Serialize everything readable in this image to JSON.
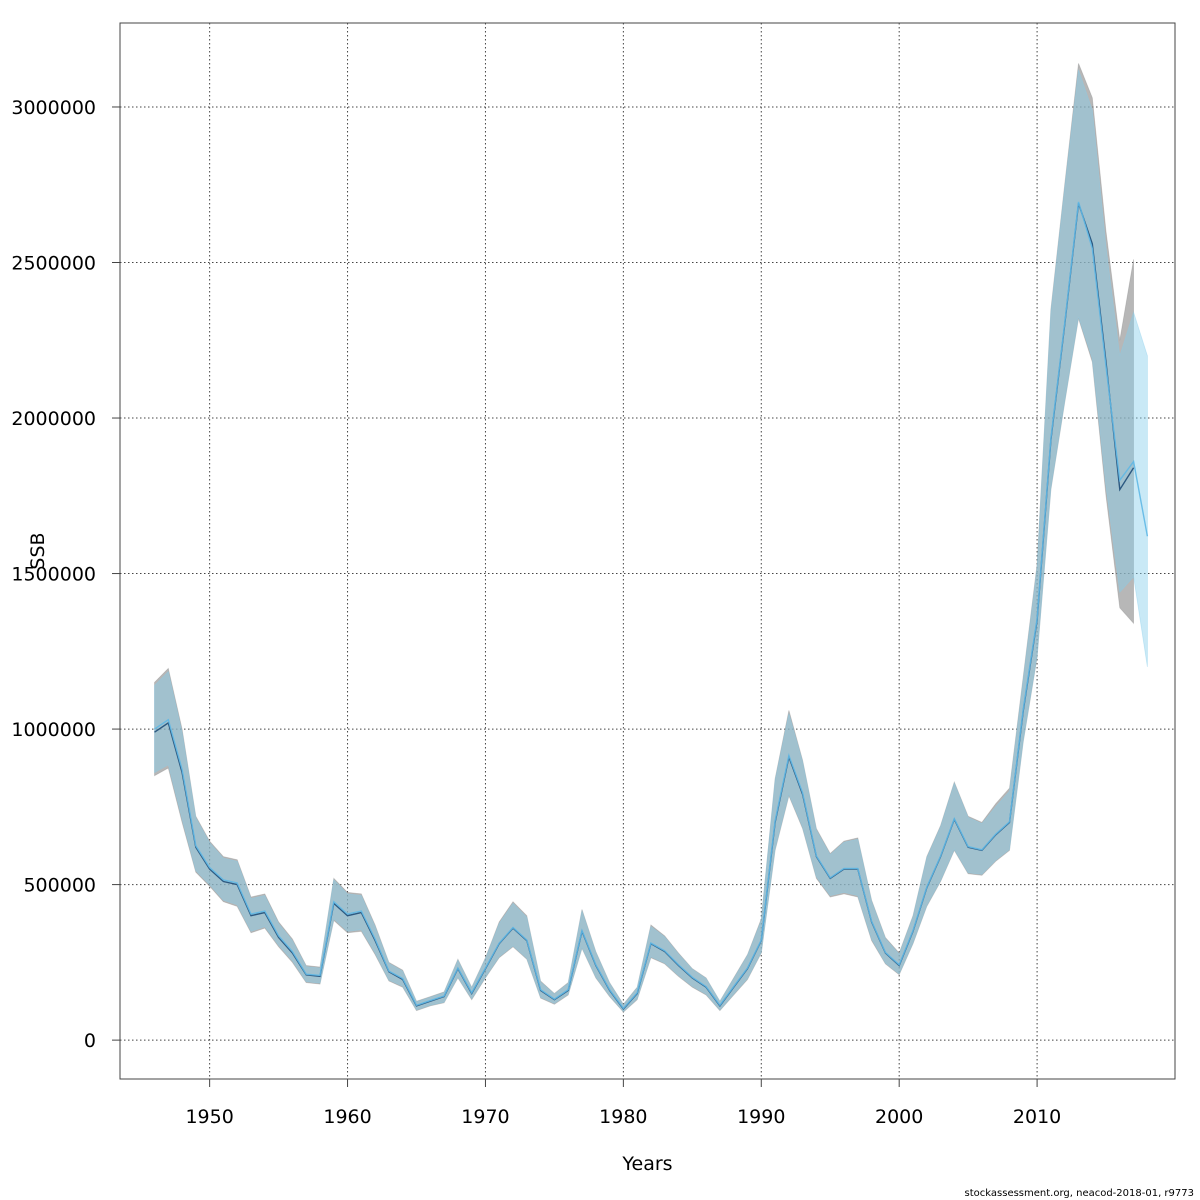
{
  "chart_data": {
    "type": "line",
    "xlabel": "Years",
    "ylabel": "SSB",
    "xlim": [
      1943.5,
      2020
    ],
    "ylim": [
      -125000,
      3270000
    ],
    "x_ticks": [
      1950,
      1960,
      1970,
      1980,
      1990,
      2000,
      2010
    ],
    "y_ticks": [
      0,
      500000,
      1000000,
      1500000,
      2000000,
      2500000,
      3000000
    ],
    "grid": true,
    "footer": "stockassessment.org, neacod-2018-01, r9773",
    "colors": {
      "band_a": "#8b8b8b",
      "band_b": "#87ceeb",
      "line_a": "#1f4e79",
      "line_b": "#5fb8e6",
      "grid": "#444444"
    },
    "series": [
      {
        "x": [
          1946,
          1947,
          1948,
          1949,
          1950,
          1951,
          1952,
          1953,
          1954,
          1955,
          1956,
          1957,
          1958,
          1959,
          1960,
          1961,
          1962,
          1963,
          1964,
          1965,
          1966,
          1967,
          1968,
          1969,
          1970,
          1971,
          1972,
          1973,
          1974,
          1975,
          1976,
          1977,
          1978,
          1979,
          1980,
          1981,
          1982,
          1983,
          1984,
          1985,
          1986,
          1987,
          1988,
          1989,
          1990,
          1991,
          1992,
          1993,
          1994,
          1995,
          1996,
          1997,
          1998,
          1999,
          2000,
          2001,
          2002,
          2003,
          2004,
          2005,
          2006,
          2007,
          2008,
          2009,
          2010,
          2011,
          2012,
          2013,
          2014,
          2015,
          2016,
          2017
        ],
        "values": [
          990000,
          1020000,
          860000,
          620000,
          550000,
          510000,
          500000,
          400000,
          410000,
          330000,
          280000,
          210000,
          205000,
          440000,
          400000,
          410000,
          320000,
          220000,
          195000,
          110000,
          125000,
          140000,
          230000,
          150000,
          230000,
          310000,
          360000,
          320000,
          160000,
          130000,
          160000,
          350000,
          240000,
          160000,
          100000,
          150000,
          310000,
          285000,
          240000,
          200000,
          170000,
          110000,
          170000,
          230000,
          320000,
          700000,
          910000,
          790000,
          590000,
          520000,
          550000,
          550000,
          380000,
          280000,
          240000,
          350000,
          490000,
          590000,
          710000,
          620000,
          610000,
          660000,
          700000,
          1060000,
          1350000,
          1930000,
          2300000,
          2690000,
          2560000,
          2180000,
          1770000,
          1840000
        ],
        "low": [
          850000,
          875000,
          700000,
          540000,
          495000,
          445000,
          430000,
          345000,
          360000,
          300000,
          250000,
          185000,
          180000,
          385000,
          345000,
          350000,
          275000,
          190000,
          170000,
          95000,
          110000,
          120000,
          200000,
          130000,
          200000,
          265000,
          300000,
          260000,
          135000,
          115000,
          145000,
          295000,
          200000,
          140000,
          90000,
          130000,
          265000,
          245000,
          205000,
          170000,
          145000,
          95000,
          145000,
          195000,
          280000,
          610000,
          785000,
          680000,
          520000,
          460000,
          470000,
          460000,
          320000,
          245000,
          210000,
          310000,
          430000,
          510000,
          610000,
          535000,
          530000,
          575000,
          610000,
          960000,
          1230000,
          1770000,
          2050000,
          2320000,
          2180000,
          1750000,
          1390000,
          1340000
        ],
        "high": [
          1150000,
          1195000,
          1000000,
          720000,
          640000,
          590000,
          580000,
          460000,
          470000,
          380000,
          325000,
          240000,
          235000,
          520000,
          475000,
          470000,
          370000,
          250000,
          225000,
          125000,
          140000,
          155000,
          260000,
          170000,
          265000,
          380000,
          445000,
          400000,
          190000,
          150000,
          185000,
          420000,
          285000,
          185000,
          115000,
          170000,
          370000,
          335000,
          280000,
          230000,
          200000,
          125000,
          200000,
          275000,
          390000,
          840000,
          1060000,
          900000,
          680000,
          600000,
          640000,
          650000,
          450000,
          330000,
          280000,
          400000,
          590000,
          690000,
          830000,
          720000,
          700000,
          760000,
          810000,
          1170000,
          1530000,
          2350000,
          2750000,
          3140000,
          3030000,
          2600000,
          2250000,
          2510000
        ]
      },
      {
        "x": [
          1946,
          1947,
          1948,
          1949,
          1950,
          1951,
          1952,
          1953,
          1954,
          1955,
          1956,
          1957,
          1958,
          1959,
          1960,
          1961,
          1962,
          1963,
          1964,
          1965,
          1966,
          1967,
          1968,
          1969,
          1970,
          1971,
          1972,
          1973,
          1974,
          1975,
          1976,
          1977,
          1978,
          1979,
          1980,
          1981,
          1982,
          1983,
          1984,
          1985,
          1986,
          1987,
          1988,
          1989,
          1990,
          1991,
          1992,
          1993,
          1994,
          1995,
          1996,
          1997,
          1998,
          1999,
          2000,
          2001,
          2002,
          2003,
          2004,
          2005,
          2006,
          2007,
          2008,
          2009,
          2010,
          2011,
          2012,
          2013,
          2014,
          2015,
          2016,
          2017,
          2018
        ],
        "values": [
          1000000,
          1030000,
          870000,
          625000,
          555000,
          515000,
          505000,
          405000,
          415000,
          335000,
          285000,
          212000,
          208000,
          445000,
          405000,
          415000,
          325000,
          222000,
          198000,
          112000,
          127000,
          142000,
          232000,
          152000,
          232000,
          312000,
          362000,
          322000,
          162000,
          132000,
          162000,
          352000,
          242000,
          162000,
          102000,
          152000,
          312000,
          287000,
          242000,
          202000,
          172000,
          112000,
          172000,
          232000,
          322000,
          705000,
          915000,
          795000,
          592000,
          522000,
          552000,
          552000,
          382000,
          282000,
          242000,
          352000,
          492000,
          592000,
          712000,
          622000,
          612000,
          662000,
          702000,
          1065000,
          1355000,
          1935000,
          2305000,
          2695000,
          2545000,
          2165000,
          1800000,
          1860000,
          1620000
        ],
        "low": [
          860000,
          885000,
          710000,
          545000,
          500000,
          450000,
          435000,
          350000,
          365000,
          305000,
          255000,
          188000,
          183000,
          390000,
          350000,
          355000,
          280000,
          193000,
          173000,
          97000,
          112000,
          122000,
          203000,
          133000,
          203000,
          268000,
          303000,
          263000,
          138000,
          118000,
          148000,
          298000,
          203000,
          143000,
          92000,
          133000,
          268000,
          248000,
          208000,
          173000,
          148000,
          97000,
          148000,
          198000,
          283000,
          615000,
          790000,
          685000,
          525000,
          465000,
          475000,
          465000,
          325000,
          248000,
          213000,
          313000,
          433000,
          513000,
          613000,
          538000,
          533000,
          578000,
          613000,
          965000,
          1235000,
          1775000,
          2055000,
          2325000,
          2190000,
          1780000,
          1440000,
          1490000,
          1200000
        ],
        "high": [
          1140000,
          1185000,
          990000,
          715000,
          635000,
          585000,
          575000,
          455000,
          465000,
          375000,
          320000,
          236000,
          232000,
          515000,
          470000,
          465000,
          365000,
          247000,
          222000,
          123000,
          138000,
          153000,
          257000,
          168000,
          262000,
          375000,
          440000,
          395000,
          187000,
          148000,
          182000,
          415000,
          282000,
          183000,
          113000,
          168000,
          365000,
          332000,
          277000,
          228000,
          198000,
          124000,
          197000,
          272000,
          385000,
          835000,
          1050000,
          895000,
          675000,
          596000,
          636000,
          646000,
          446000,
          326000,
          276000,
          396000,
          586000,
          686000,
          826000,
          716000,
          696000,
          750000,
          800000,
          1160000,
          1520000,
          2340000,
          2740000,
          3120000,
          2990000,
          2550000,
          2200000,
          2340000,
          2200000
        ]
      }
    ]
  }
}
